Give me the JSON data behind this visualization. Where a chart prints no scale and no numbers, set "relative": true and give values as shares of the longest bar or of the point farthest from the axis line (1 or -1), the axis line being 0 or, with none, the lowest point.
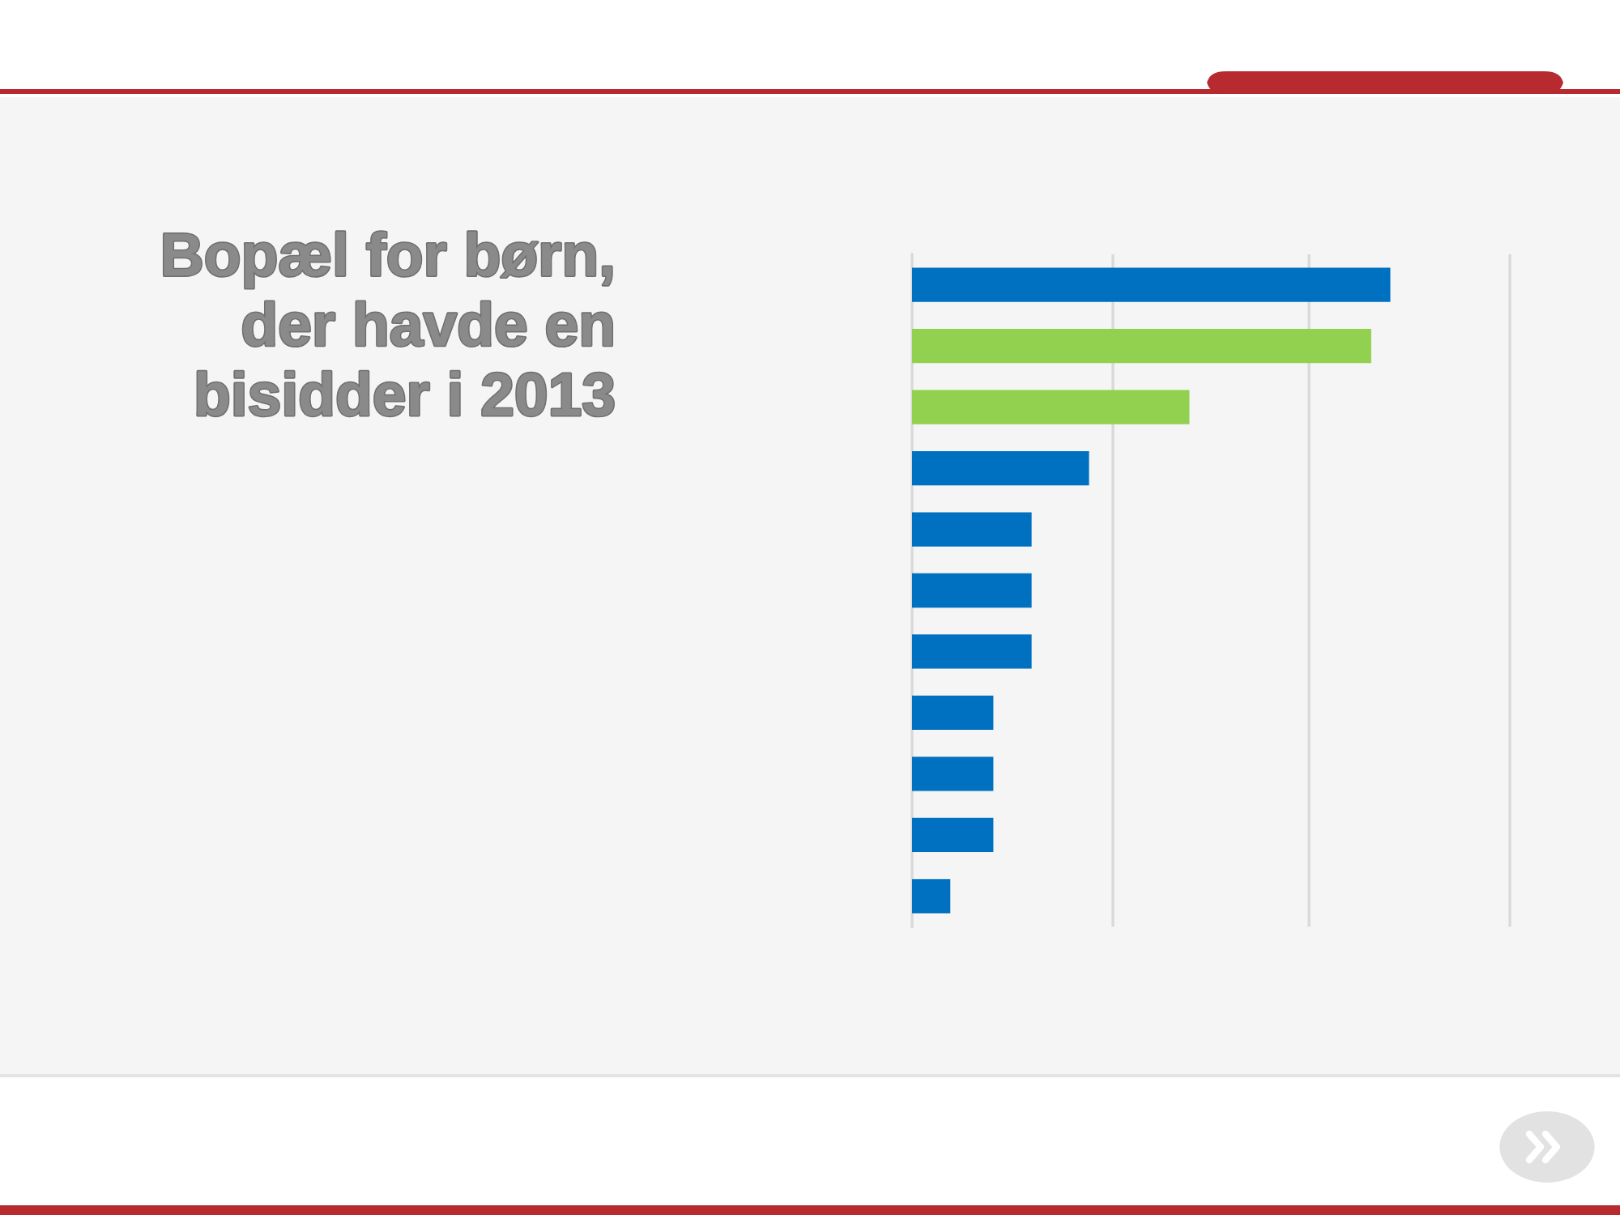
{
  "chart_data": {
    "type": "bar",
    "orientation": "horizontal",
    "relative": true,
    "title": "Bopæl for børn,\nder havde en\nbisidder i 2013",
    "categories": [
      null,
      null,
      null,
      null,
      null,
      null,
      null,
      null,
      null,
      null,
      null
    ],
    "values": [
      1,
      0.96,
      0.58,
      0.37,
      0.25,
      0.25,
      0.25,
      0.17,
      0.17,
      0.17,
      0.08
    ],
    "colors": [
      "#0070c0",
      "#92d050",
      "#92d050",
      "#0070c0",
      "#0070c0",
      "#0070c0",
      "#0070c0",
      "#0070c0",
      "#0070c0",
      "#0070c0",
      "#0070c0"
    ],
    "ref_lines": [
      {
        "axis": "x",
        "value": 0.42,
        "color": "#d9d9d9"
      },
      {
        "axis": "x",
        "value": 0.83,
        "color": "#d9d9d9"
      },
      {
        "axis": "x",
        "value": 1.25,
        "color": "#d9d9d9"
      }
    ],
    "tick_labels": false
  }
}
